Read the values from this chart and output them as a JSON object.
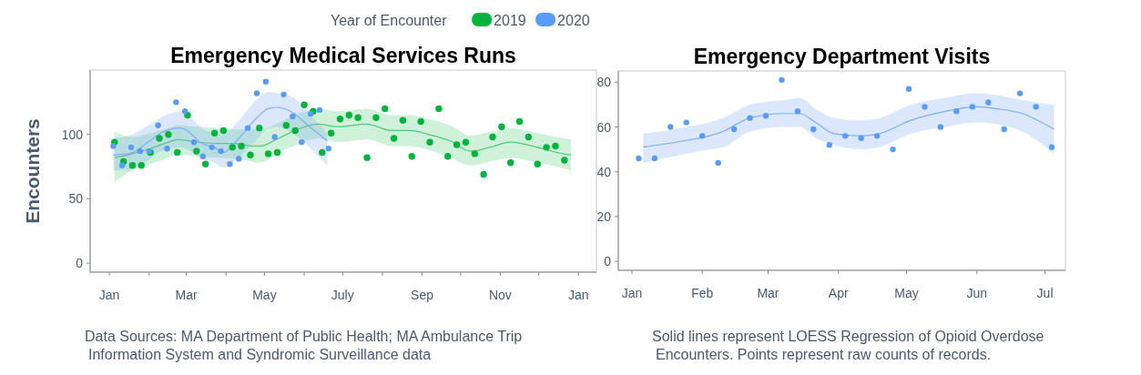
{
  "chart_data": [
    {
      "type": "scatter",
      "title": "Emergency Medical Services Runs",
      "ylabel": "Encounters",
      "legend_title": "Year of Encounter",
      "legend": "top",
      "xlim": [
        "2019-12-17",
        "2021-01-15"
      ],
      "xticks": [
        {
          "value": "2020-01-01",
          "label": "Jan"
        },
        {
          "value": "2020-02-01",
          "label": null
        },
        {
          "value": "2020-03-01",
          "label": "Mar"
        },
        {
          "value": "2020-04-01",
          "label": null
        },
        {
          "value": "2020-05-01",
          "label": "May"
        },
        {
          "value": "2020-06-01",
          "label": null
        },
        {
          "value": "2020-07-01",
          "label": "July"
        },
        {
          "value": "2020-08-01",
          "label": null
        },
        {
          "value": "2020-09-01",
          "label": "Sep"
        },
        {
          "value": "2020-10-01",
          "label": null
        },
        {
          "value": "2020-11-01",
          "label": "Nov"
        },
        {
          "value": "2020-12-01",
          "label": null
        },
        {
          "value": "2021-01-01",
          "label": "Jan"
        }
      ],
      "ylim": [
        -7,
        150
      ],
      "yticks": [
        0,
        50,
        100
      ],
      "annotations": [
        "Data Sources: MA Department of Public Health; MA Ambulance Trip Information System and Syndromic Surveillance data"
      ],
      "series": [
        {
          "type": "line",
          "color": "#52c878",
          "x": [
            "2020-01-05",
            "2020-01-19",
            "2020-02-02",
            "2020-02-16",
            "2020-02-23",
            "2020-03-10",
            "2020-03-24",
            "2020-04-07",
            "2020-04-21",
            "2020-04-28",
            "2020-05-12",
            "2020-05-27",
            "2020-06-12",
            "2020-06-27",
            "2020-07-20",
            "2020-08-08",
            "2020-08-23",
            "2020-09-06",
            "2020-09-23",
            "2020-10-09",
            "2020-10-24",
            "2020-11-09",
            "2020-11-30",
            "2020-12-15",
            "2020-12-26"
          ],
          "values": [
            82,
            85,
            89,
            94,
            96,
            94,
            93,
            93,
            91,
            91,
            97,
            104,
            108,
            106,
            108,
            103,
            103,
            100,
            95,
            87,
            90,
            94,
            90,
            86,
            84
          ],
          "lower": [
            63,
            72,
            77,
            82,
            85,
            83,
            82,
            81,
            79,
            78,
            86,
            92,
            97,
            94,
            96,
            91,
            91,
            88,
            82,
            76,
            79,
            82,
            78,
            75,
            72
          ],
          "upper": [
            102,
            98,
            101,
            105,
            107,
            106,
            105,
            104,
            104,
            104,
            109,
            116,
            120,
            118,
            120,
            115,
            115,
            112,
            107,
            99,
            102,
            105,
            101,
            98,
            96
          ]
        },
        {
          "type": "line",
          "color": "#7fadf5",
          "x": [
            "2020-01-04",
            "2020-01-19",
            "2020-01-31",
            "2020-02-12",
            "2020-02-26",
            "2020-03-04",
            "2020-03-13",
            "2020-03-23",
            "2020-03-30",
            "2020-04-11",
            "2020-04-25",
            "2020-05-04",
            "2020-05-11",
            "2020-05-23",
            "2020-06-04",
            "2020-06-19"
          ],
          "values": [
            84,
            86,
            94,
            102,
            105,
            101,
            93,
            90,
            86,
            97,
            113,
            120,
            121,
            117,
            107,
            95
          ],
          "lower": [
            72,
            73,
            80,
            88,
            90,
            87,
            81,
            78,
            74,
            82,
            96,
            105,
            106,
            101,
            91,
            76
          ],
          "upper": [
            97,
            100,
            107,
            114,
            118,
            114,
            105,
            101,
            100,
            111,
            127,
            133,
            132,
            129,
            117,
            101
          ]
        },
        {
          "name": "2019",
          "color": "#00b33c",
          "marker": "circle",
          "x": [
            "2020-01-05",
            "2020-01-12",
            "2020-01-19",
            "2020-01-26",
            "2020-02-02",
            "2020-02-09",
            "2020-02-16",
            "2020-02-23",
            "2020-03-02",
            "2020-03-09",
            "2020-03-16",
            "2020-03-23",
            "2020-03-30",
            "2020-04-06",
            "2020-04-13",
            "2020-04-20",
            "2020-04-27",
            "2020-05-04",
            "2020-05-11",
            "2020-05-18",
            "2020-05-25",
            "2020-06-01",
            "2020-06-08",
            "2020-06-15",
            "2020-06-22",
            "2020-06-29",
            "2020-07-06",
            "2020-07-13",
            "2020-07-20",
            "2020-07-27",
            "2020-08-03",
            "2020-08-10",
            "2020-08-17",
            "2020-08-24",
            "2020-08-31",
            "2020-09-07",
            "2020-09-14",
            "2020-09-21",
            "2020-09-28",
            "2020-10-05",
            "2020-10-12",
            "2020-10-19",
            "2020-10-26",
            "2020-11-02",
            "2020-11-09",
            "2020-11-16",
            "2020-11-23",
            "2020-11-30",
            "2020-12-07",
            "2020-12-14",
            "2020-12-21"
          ],
          "values": [
            94,
            79,
            76,
            76,
            86,
            97,
            100,
            86,
            115,
            87,
            77,
            101,
            103,
            90,
            91,
            84,
            105,
            85,
            86,
            107,
            103,
            123,
            118,
            86,
            101,
            112,
            115,
            113,
            82,
            113,
            120,
            97,
            111,
            83,
            110,
            94,
            120,
            83,
            92,
            94,
            85,
            69,
            98,
            106,
            78,
            110,
            98,
            77,
            90,
            91,
            80
          ]
        },
        {
          "name": "2020",
          "color": "#5b9bf8",
          "marker": "circle",
          "x": [
            "2020-01-04",
            "2020-01-11",
            "2020-01-18",
            "2020-01-25",
            "2020-02-01",
            "2020-02-08",
            "2020-02-15",
            "2020-02-22",
            "2020-02-29",
            "2020-03-07",
            "2020-03-14",
            "2020-03-21",
            "2020-03-28",
            "2020-04-04",
            "2020-04-11",
            "2020-04-18",
            "2020-04-25",
            "2020-05-02",
            "2020-05-09",
            "2020-05-16",
            "2020-05-23",
            "2020-05-30",
            "2020-06-06",
            "2020-06-13",
            "2020-06-20"
          ],
          "values": [
            91,
            76,
            90,
            87,
            87,
            107,
            89,
            125,
            118,
            94,
            83,
            90,
            87,
            77,
            81,
            105,
            132,
            141,
            98,
            131,
            114,
            94,
            116,
            119,
            89
          ]
        }
      ]
    },
    {
      "type": "scatter",
      "title": "Emergency Department Visits",
      "xlim": [
        "2019-12-26",
        "2020-07-10"
      ],
      "xticks": [
        {
          "value": "2020-01-01",
          "label": "Jan"
        },
        {
          "value": "2020-02-01",
          "label": "Feb"
        },
        {
          "value": "2020-03-01",
          "label": "Mar"
        },
        {
          "value": "2020-04-01",
          "label": "Apr"
        },
        {
          "value": "2020-05-01",
          "label": "May"
        },
        {
          "value": "2020-06-01",
          "label": "Jun"
        },
        {
          "value": "2020-07-01",
          "label": "Jul"
        }
      ],
      "ylim": [
        -4,
        85
      ],
      "yticks": [
        0,
        20,
        40,
        60,
        80
      ],
      "annotations": [
        "Solid lines represent LOESS Regression of Opioid Overdose Encounters. Points represent raw counts of records."
      ],
      "series": [
        {
          "type": "line",
          "color": "#7fadf5",
          "x": [
            "2020-01-06",
            "2020-01-25",
            "2020-02-04",
            "2020-02-10",
            "2020-02-22",
            "2020-03-08",
            "2020-03-15",
            "2020-03-22",
            "2020-03-30",
            "2020-04-11",
            "2020-04-19",
            "2020-05-03",
            "2020-05-18",
            "2020-06-01",
            "2020-06-11",
            "2020-06-21",
            "2020-07-05"
          ],
          "values": [
            51,
            54,
            56,
            58,
            64,
            66,
            66,
            62,
            57,
            56,
            57,
            63,
            67,
            69,
            68,
            66,
            59
          ],
          "lower": [
            44,
            48,
            50,
            51,
            58,
            60,
            60,
            55,
            52,
            50,
            51,
            57,
            60,
            62,
            61,
            58,
            48
          ],
          "upper": [
            57,
            60,
            62,
            64,
            70,
            72,
            73,
            68,
            64,
            63,
            64,
            70,
            73,
            75,
            74,
            72,
            70
          ]
        },
        {
          "color": "#5b9bf8",
          "marker": "circle",
          "x": [
            "2020-01-04",
            "2020-01-11",
            "2020-01-18",
            "2020-01-25",
            "2020-02-01",
            "2020-02-08",
            "2020-02-15",
            "2020-02-22",
            "2020-02-29",
            "2020-03-07",
            "2020-03-14",
            "2020-03-21",
            "2020-03-28",
            "2020-04-04",
            "2020-04-11",
            "2020-04-18",
            "2020-04-25",
            "2020-05-02",
            "2020-05-09",
            "2020-05-16",
            "2020-05-23",
            "2020-05-30",
            "2020-06-06",
            "2020-06-13",
            "2020-06-20",
            "2020-06-27",
            "2020-07-04"
          ],
          "values": [
            46,
            46,
            60,
            62,
            56,
            44,
            59,
            64,
            65,
            81,
            67,
            59,
            52,
            56,
            55,
            56,
            50,
            77,
            69,
            60,
            67,
            69,
            71,
            59,
            75,
            69,
            51
          ]
        }
      ]
    }
  ]
}
